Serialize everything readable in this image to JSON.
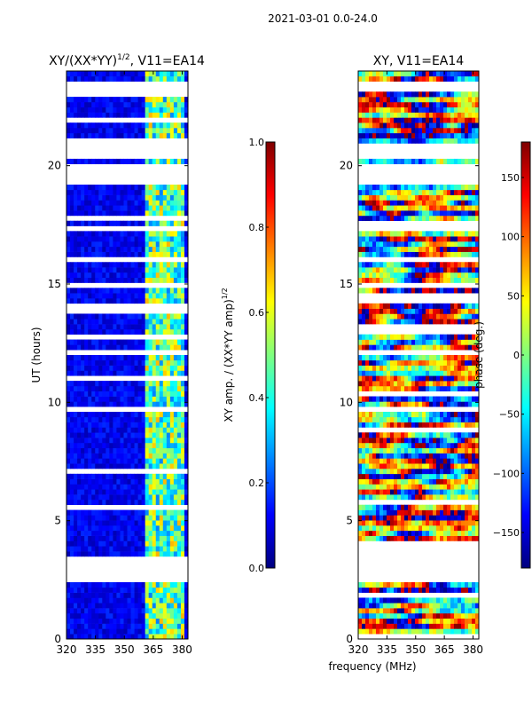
{
  "figure": {
    "suptitle": "2021-03-01 0.0-24.0",
    "xlabel_shared": "frequency (MHz)"
  },
  "colormap": {
    "name": "jet",
    "stops": [
      "#00007f",
      "#0000ff",
      "#007fff",
      "#00ffff",
      "#7fff7f",
      "#ffff00",
      "#ff7f00",
      "#ff0000",
      "#7f0000"
    ]
  },
  "chart_data": [
    {
      "type": "heatmap",
      "title": "XY/(XX*YY)^1/2, V11=EA14",
      "title_main": "XY/(XX*YY)",
      "title_sup": "1/2",
      "title_suffix": ", V11=EA14",
      "xlabel": "",
      "ylabel": "UT (hours)",
      "xlim": [
        320,
        383
      ],
      "ylim": [
        0,
        24
      ],
      "xticks": [
        "320",
        "335",
        "350",
        "365",
        "380"
      ],
      "xtick_values": [
        320,
        335,
        350,
        365,
        380
      ],
      "yticks": [
        "0",
        "5",
        "10",
        "15",
        "20"
      ],
      "ytick_values": [
        0,
        5,
        10,
        15,
        20
      ],
      "colorbar": {
        "label_main": "XY amp. / (XX*YY amp)",
        "label_sup": "1/2",
        "range": [
          0.0,
          1.0
        ],
        "ticks": [
          "0.0",
          "0.2",
          "0.4",
          "0.6",
          "0.8",
          "1.0"
        ],
        "tick_values": [
          0.0,
          0.2,
          0.4,
          0.6,
          0.8,
          1.0
        ]
      },
      "gaps_hours": [
        [
          2.5,
          3.5
        ],
        [
          9.5,
          9.8
        ],
        [
          14.8,
          15.05
        ],
        [
          16.0,
          16.2
        ],
        [
          17.2,
          17.5
        ],
        [
          19.3,
          20.0
        ],
        [
          20.2,
          21.0
        ],
        [
          23.2,
          23.5
        ]
      ],
      "bright_channel_range_mhz": [
        360,
        382
      ]
    },
    {
      "type": "heatmap",
      "title": "XY, V11=EA14",
      "xlabel": "",
      "ylabel": "",
      "xlim": [
        320,
        383
      ],
      "ylim": [
        0,
        24
      ],
      "xticks": [
        "320",
        "335",
        "350",
        "365",
        "380"
      ],
      "xtick_values": [
        320,
        335,
        350,
        365,
        380
      ],
      "yticks": [
        "0",
        "5",
        "10",
        "15",
        "20"
      ],
      "ytick_values": [
        0,
        5,
        10,
        15,
        20
      ],
      "colorbar": {
        "label": "phase (deg.)",
        "range": [
          -180,
          180
        ],
        "ticks": [
          "150",
          "100",
          "50",
          "0",
          "−50",
          "−100",
          "−150"
        ],
        "tick_values": [
          150,
          100,
          50,
          0,
          -50,
          -100,
          -150
        ]
      },
      "gaps_hours": [
        [
          2.5,
          3.5
        ],
        [
          9.5,
          9.8
        ],
        [
          14.8,
          15.05
        ],
        [
          16.0,
          16.2
        ],
        [
          17.2,
          17.5
        ],
        [
          19.3,
          20.0
        ],
        [
          20.2,
          21.0
        ],
        [
          23.2,
          23.5
        ]
      ]
    }
  ]
}
